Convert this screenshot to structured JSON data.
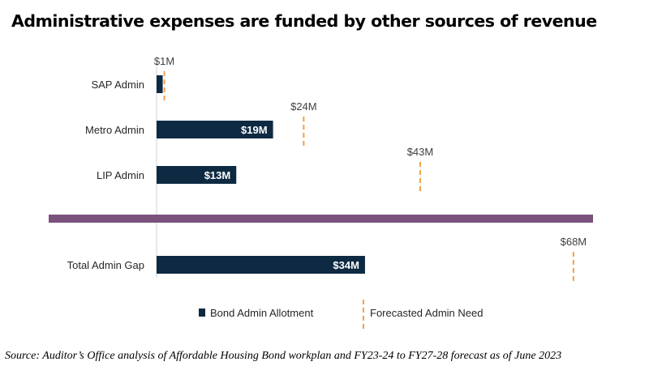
{
  "title": "Administrative expenses are funded by other sources of revenue",
  "source": "Source: Auditor’s Office analysis of Affordable Housing Bond workplan and FY23-24 to FY27-28 forecast as of June 2023",
  "colors": {
    "bar": "#0d2a42",
    "need": "#f4a04a",
    "divider": "#7a527c",
    "axis": "#d0d0d0"
  },
  "chart_data": {
    "type": "bar",
    "orientation": "horizontal",
    "categories": [
      "SAP Admin",
      "Metro Admin",
      "LIP Admin",
      "Total Admin Gap"
    ],
    "series": [
      {
        "name": "Bond Admin Allotment",
        "mark": "bar",
        "values": [
          1,
          19,
          13,
          34
        ],
        "labels": [
          "",
          "$19M",
          "$13M",
          "$34M"
        ]
      },
      {
        "name": "Forecasted Admin Need",
        "mark": "dashed-tick",
        "values": [
          1,
          24,
          43,
          68
        ],
        "labels": [
          "$1M",
          "$24M",
          "$43M",
          "$68M"
        ]
      }
    ],
    "xlim": [
      0,
      70
    ],
    "grid": false,
    "legend_position": "bottom"
  }
}
